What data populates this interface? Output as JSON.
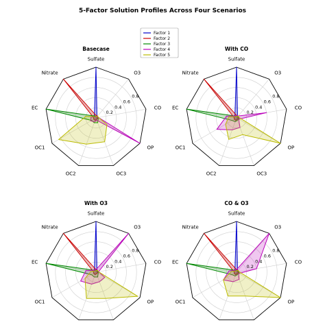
{
  "chart_data": {
    "type": "radar",
    "title": "5-Factor Solution Profiles Across Four Scenarios",
    "axes": [
      "Sulfate",
      "O3",
      "CO",
      "OP",
      "OC3",
      "OC2",
      "OC1",
      "EC",
      "Nitrate"
    ],
    "rlim": [
      0,
      1
    ],
    "rticks": [
      "0.2",
      "0.4",
      "0.6",
      "0.8"
    ],
    "grid": true,
    "legend_location": "top-center",
    "series_styles": [
      {
        "name": "Factor 1",
        "color": "#0000cc"
      },
      {
        "name": "Factor 2",
        "color": "#cc0000"
      },
      {
        "name": "Factor 3",
        "color": "#008800"
      },
      {
        "name": "Factor 4",
        "color": "#bb00bb"
      },
      {
        "name": "Factor 5",
        "color": "#bbbb00"
      }
    ],
    "panels": [
      {
        "title": "Basecase",
        "series": [
          {
            "name": "Factor 1",
            "values": [
              1.0,
              0.03,
              0.05,
              0.03,
              0.03,
              0.05,
              0.05,
              0.05,
              0.05
            ]
          },
          {
            "name": "Factor 2",
            "values": [
              0.05,
              0.05,
              0.03,
              0.03,
              0.03,
              0.05,
              0.05,
              0.05,
              1.0
            ]
          },
          {
            "name": "Factor 3",
            "values": [
              0.03,
              0.03,
              0.05,
              0.05,
              0.1,
              0.1,
              0.1,
              1.0,
              0.05
            ]
          },
          {
            "name": "Factor 4",
            "values": [
              0.03,
              0.03,
              0.05,
              1.0,
              0.05,
              0.08,
              0.12,
              0.1,
              0.03
            ]
          },
          {
            "name": "Factor 5",
            "values": [
              0.03,
              0.05,
              0.05,
              0.25,
              0.5,
              0.55,
              0.85,
              0.2,
              0.03
            ]
          }
        ]
      },
      {
        "title": "With CO",
        "series": [
          {
            "name": "Factor 1",
            "values": [
              1.0,
              0.03,
              0.05,
              0.03,
              0.03,
              0.05,
              0.05,
              0.05,
              0.05
            ]
          },
          {
            "name": "Factor 2",
            "values": [
              0.05,
              0.05,
              0.03,
              0.03,
              0.03,
              0.05,
              0.05,
              0.05,
              1.0
            ]
          },
          {
            "name": "Factor 3",
            "values": [
              0.03,
              0.03,
              0.05,
              0.05,
              0.05,
              0.08,
              0.1,
              1.0,
              0.05
            ]
          },
          {
            "name": "Factor 4",
            "values": [
              0.05,
              0.05,
              0.6,
              0.05,
              0.2,
              0.25,
              0.45,
              0.2,
              0.05
            ]
          },
          {
            "name": "Factor 5",
            "values": [
              0.03,
              0.05,
              0.05,
              1.0,
              0.35,
              0.45,
              0.25,
              0.15,
              0.03
            ]
          }
        ]
      },
      {
        "title": "With O3",
        "series": [
          {
            "name": "Factor 1",
            "values": [
              1.0,
              0.03,
              0.05,
              0.03,
              0.03,
              0.05,
              0.05,
              0.05,
              0.05
            ]
          },
          {
            "name": "Factor 2",
            "values": [
              0.05,
              0.05,
              0.03,
              0.03,
              0.03,
              0.05,
              0.05,
              0.05,
              1.0
            ]
          },
          {
            "name": "Factor 3",
            "values": [
              0.03,
              0.03,
              0.05,
              0.05,
              0.1,
              0.1,
              0.1,
              1.0,
              0.05
            ]
          },
          {
            "name": "Factor 4",
            "values": [
              0.05,
              1.0,
              0.05,
              0.2,
              0.2,
              0.25,
              0.35,
              0.2,
              0.05
            ]
          },
          {
            "name": "Factor 5",
            "values": [
              0.03,
              0.05,
              0.05,
              0.95,
              0.55,
              0.55,
              0.25,
              0.1,
              0.03
            ]
          }
        ]
      },
      {
        "title": "CO & O3",
        "series": [
          {
            "name": "Factor 1",
            "values": [
              1.0,
              0.03,
              0.05,
              0.03,
              0.03,
              0.05,
              0.05,
              0.05,
              0.05
            ]
          },
          {
            "name": "Factor 2",
            "values": [
              0.05,
              0.05,
              0.03,
              0.03,
              0.03,
              0.05,
              0.05,
              0.05,
              1.0
            ]
          },
          {
            "name": "Factor 3",
            "values": [
              0.03,
              0.03,
              0.05,
              0.05,
              0.05,
              0.08,
              0.1,
              1.0,
              0.05
            ]
          },
          {
            "name": "Factor 4",
            "values": [
              0.05,
              1.0,
              0.4,
              0.05,
              0.15,
              0.2,
              0.3,
              0.15,
              0.05
            ]
          },
          {
            "name": "Factor 5",
            "values": [
              0.03,
              0.05,
              0.05,
              1.0,
              0.5,
              0.5,
              0.3,
              0.1,
              0.03
            ]
          }
        ]
      }
    ]
  }
}
